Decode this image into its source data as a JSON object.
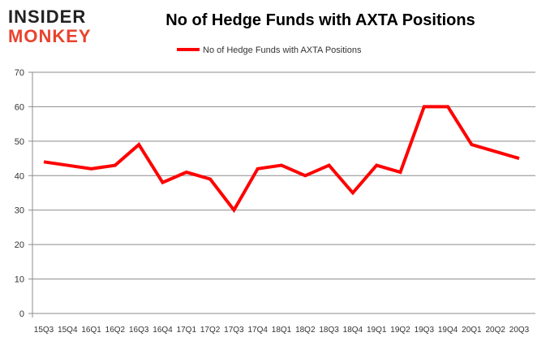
{
  "logo": {
    "line1": "INSIDER",
    "line2": "MONKEY"
  },
  "chart_data": {
    "type": "line",
    "title": "No of Hedge Funds with AXTA Positions",
    "xlabel": "",
    "ylabel": "",
    "categories": [
      "15Q3",
      "15Q4",
      "16Q1",
      "16Q2",
      "16Q3",
      "16Q4",
      "17Q1",
      "17Q2",
      "17Q3",
      "17Q4",
      "18Q1",
      "18Q2",
      "18Q3",
      "18Q4",
      "19Q1",
      "19Q2",
      "19Q3",
      "19Q4",
      "20Q1",
      "20Q2",
      "20Q3"
    ],
    "series": [
      {
        "name": "No of Hedge Funds with AXTA Positions",
        "color": "#ff0000",
        "values": [
          44,
          43,
          42,
          43,
          49,
          38,
          41,
          39,
          30,
          42,
          43,
          40,
          43,
          35,
          43,
          41,
          60,
          60,
          49,
          47,
          45
        ]
      }
    ],
    "ylim": [
      0,
      70
    ],
    "yticks": [
      0,
      10,
      20,
      30,
      40,
      50,
      60,
      70
    ],
    "grid": true,
    "legend": "top-center"
  }
}
